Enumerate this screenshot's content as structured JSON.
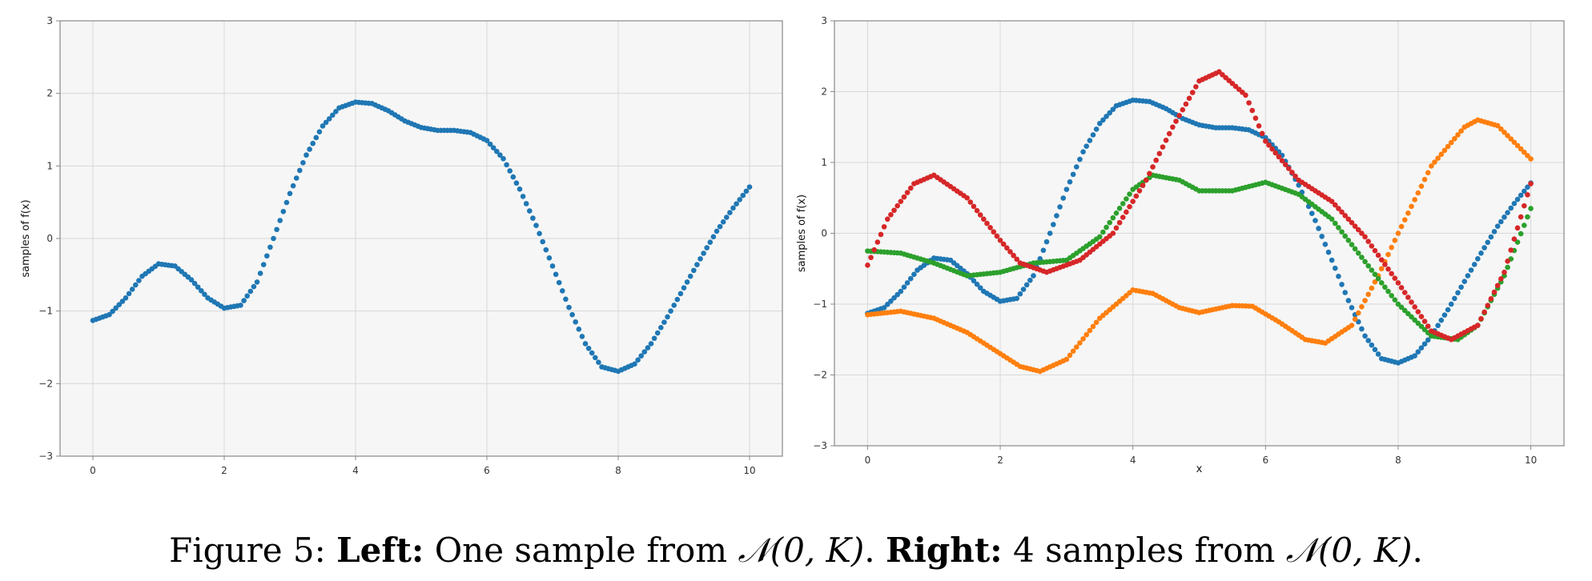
{
  "colors": {
    "plot_background": "#f6f6f6",
    "grid": "#d8d8d8",
    "frame": "#888888",
    "series": [
      "#1f77b4",
      "#ff7f0e",
      "#2ca02c",
      "#d62728"
    ]
  },
  "caption": {
    "figure_label": "Figure 5:",
    "left_bold": "Left:",
    "left_text": "One sample from",
    "right_bold": "Right:",
    "right_text": "4 samples from",
    "distribution": "𝒩(0, K)",
    "period": "."
  },
  "chart_data": [
    {
      "type": "scatter",
      "title": "",
      "xlabel": "",
      "ylabel": "samples of f(x)",
      "xlim": [
        -0.5,
        10.5
      ],
      "ylim": [
        -3,
        3
      ],
      "xticks": [
        0,
        2,
        4,
        6,
        8,
        10
      ],
      "yticks": [
        -3,
        -2,
        -1,
        0,
        1,
        2,
        3
      ],
      "grid": true,
      "x_range": [
        0,
        10
      ],
      "n_points": 201,
      "series": [
        {
          "knots": [
            [
              0,
              -1.13
            ],
            [
              0.25,
              -1.05
            ],
            [
              0.5,
              -0.82
            ],
            [
              0.75,
              -0.52
            ],
            [
              1.0,
              -0.35
            ],
            [
              1.25,
              -0.38
            ],
            [
              1.5,
              -0.57
            ],
            [
              1.75,
              -0.82
            ],
            [
              2.0,
              -0.96
            ],
            [
              2.25,
              -0.92
            ],
            [
              2.5,
              -0.6
            ],
            [
              2.75,
              0.0
            ],
            [
              3.0,
              0.62
            ],
            [
              3.25,
              1.15
            ],
            [
              3.5,
              1.55
            ],
            [
              3.75,
              1.8
            ],
            [
              4.0,
              1.88
            ],
            [
              4.25,
              1.86
            ],
            [
              4.5,
              1.76
            ],
            [
              4.75,
              1.62
            ],
            [
              5.0,
              1.53
            ],
            [
              5.25,
              1.49
            ],
            [
              5.5,
              1.49
            ],
            [
              5.75,
              1.46
            ],
            [
              6.0,
              1.35
            ],
            [
              6.25,
              1.1
            ],
            [
              6.5,
              0.68
            ],
            [
              6.75,
              0.18
            ],
            [
              7.0,
              -0.38
            ],
            [
              7.25,
              -0.95
            ],
            [
              7.5,
              -1.45
            ],
            [
              7.75,
              -1.77
            ],
            [
              8.0,
              -1.83
            ],
            [
              8.25,
              -1.73
            ],
            [
              8.5,
              -1.45
            ],
            [
              8.75,
              -1.08
            ],
            [
              9.0,
              -0.68
            ],
            [
              9.25,
              -0.28
            ],
            [
              9.5,
              0.1
            ],
            [
              9.75,
              0.42
            ],
            [
              10.0,
              0.71
            ]
          ]
        }
      ]
    },
    {
      "type": "scatter",
      "title": "",
      "xlabel": "x",
      "ylabel": "samples of f(x)",
      "xlim": [
        -0.5,
        10.5
      ],
      "ylim": [
        -3,
        3
      ],
      "xticks": [
        0,
        2,
        4,
        6,
        8,
        10
      ],
      "yticks": [
        -3,
        -2,
        -1,
        0,
        1,
        2,
        3
      ],
      "grid": true,
      "x_range": [
        0,
        10
      ],
      "n_points": 201,
      "series": [
        {
          "knots": [
            [
              0,
              -1.13
            ],
            [
              0.25,
              -1.05
            ],
            [
              0.5,
              -0.82
            ],
            [
              0.75,
              -0.52
            ],
            [
              1.0,
              -0.35
            ],
            [
              1.25,
              -0.38
            ],
            [
              1.5,
              -0.57
            ],
            [
              1.75,
              -0.82
            ],
            [
              2.0,
              -0.96
            ],
            [
              2.25,
              -0.92
            ],
            [
              2.5,
              -0.6
            ],
            [
              2.75,
              0.0
            ],
            [
              3.0,
              0.62
            ],
            [
              3.25,
              1.15
            ],
            [
              3.5,
              1.55
            ],
            [
              3.75,
              1.8
            ],
            [
              4.0,
              1.88
            ],
            [
              4.25,
              1.86
            ],
            [
              4.5,
              1.76
            ],
            [
              4.75,
              1.62
            ],
            [
              5.0,
              1.53
            ],
            [
              5.25,
              1.49
            ],
            [
              5.5,
              1.49
            ],
            [
              5.75,
              1.46
            ],
            [
              6.0,
              1.35
            ],
            [
              6.25,
              1.1
            ],
            [
              6.5,
              0.68
            ],
            [
              6.75,
              0.18
            ],
            [
              7.0,
              -0.38
            ],
            [
              7.25,
              -0.95
            ],
            [
              7.5,
              -1.45
            ],
            [
              7.75,
              -1.77
            ],
            [
              8.0,
              -1.83
            ],
            [
              8.25,
              -1.73
            ],
            [
              8.5,
              -1.45
            ],
            [
              8.75,
              -1.08
            ],
            [
              9.0,
              -0.68
            ],
            [
              9.25,
              -0.28
            ],
            [
              9.5,
              0.1
            ],
            [
              9.75,
              0.42
            ],
            [
              10.0,
              0.71
            ]
          ]
        },
        {
          "knots": [
            [
              0,
              -1.15
            ],
            [
              0.5,
              -1.1
            ],
            [
              1.0,
              -1.2
            ],
            [
              1.5,
              -1.4
            ],
            [
              2.0,
              -1.7
            ],
            [
              2.3,
              -1.88
            ],
            [
              2.6,
              -1.95
            ],
            [
              3.0,
              -1.78
            ],
            [
              3.5,
              -1.2
            ],
            [
              4.0,
              -0.8
            ],
            [
              4.3,
              -0.85
            ],
            [
              4.7,
              -1.05
            ],
            [
              5.0,
              -1.12
            ],
            [
              5.5,
              -1.02
            ],
            [
              5.8,
              -1.03
            ],
            [
              6.2,
              -1.25
            ],
            [
              6.6,
              -1.5
            ],
            [
              6.9,
              -1.55
            ],
            [
              7.3,
              -1.3
            ],
            [
              7.7,
              -0.6
            ],
            [
              8.0,
              0.0
            ],
            [
              8.5,
              0.95
            ],
            [
              9.0,
              1.5
            ],
            [
              9.2,
              1.6
            ],
            [
              9.5,
              1.52
            ],
            [
              10.0,
              1.05
            ]
          ]
        },
        {
          "knots": [
            [
              0,
              -0.25
            ],
            [
              0.5,
              -0.28
            ],
            [
              1.0,
              -0.42
            ],
            [
              1.5,
              -0.6
            ],
            [
              2.0,
              -0.55
            ],
            [
              2.5,
              -0.42
            ],
            [
              3.0,
              -0.38
            ],
            [
              3.5,
              -0.05
            ],
            [
              4.0,
              0.62
            ],
            [
              4.3,
              0.82
            ],
            [
              4.7,
              0.75
            ],
            [
              5.0,
              0.6
            ],
            [
              5.5,
              0.6
            ],
            [
              6.0,
              0.72
            ],
            [
              6.5,
              0.55
            ],
            [
              7.0,
              0.2
            ],
            [
              7.5,
              -0.4
            ],
            [
              8.0,
              -1.0
            ],
            [
              8.5,
              -1.45
            ],
            [
              8.9,
              -1.5
            ],
            [
              9.2,
              -1.3
            ],
            [
              9.6,
              -0.6
            ],
            [
              10.0,
              0.35
            ]
          ]
        },
        {
          "knots": [
            [
              0,
              -0.45
            ],
            [
              0.3,
              0.2
            ],
            [
              0.7,
              0.7
            ],
            [
              1.0,
              0.82
            ],
            [
              1.5,
              0.5
            ],
            [
              2.0,
              -0.1
            ],
            [
              2.3,
              -0.42
            ],
            [
              2.7,
              -0.55
            ],
            [
              3.2,
              -0.38
            ],
            [
              3.7,
              0.0
            ],
            [
              4.2,
              0.75
            ],
            [
              4.6,
              1.5
            ],
            [
              5.0,
              2.15
            ],
            [
              5.3,
              2.28
            ],
            [
              5.7,
              1.95
            ],
            [
              6.0,
              1.3
            ],
            [
              6.5,
              0.75
            ],
            [
              7.0,
              0.45
            ],
            [
              7.5,
              -0.05
            ],
            [
              8.0,
              -0.7
            ],
            [
              8.5,
              -1.38
            ],
            [
              8.8,
              -1.5
            ],
            [
              9.2,
              -1.3
            ],
            [
              9.6,
              -0.55
            ],
            [
              10.0,
              0.7
            ]
          ]
        }
      ]
    }
  ]
}
